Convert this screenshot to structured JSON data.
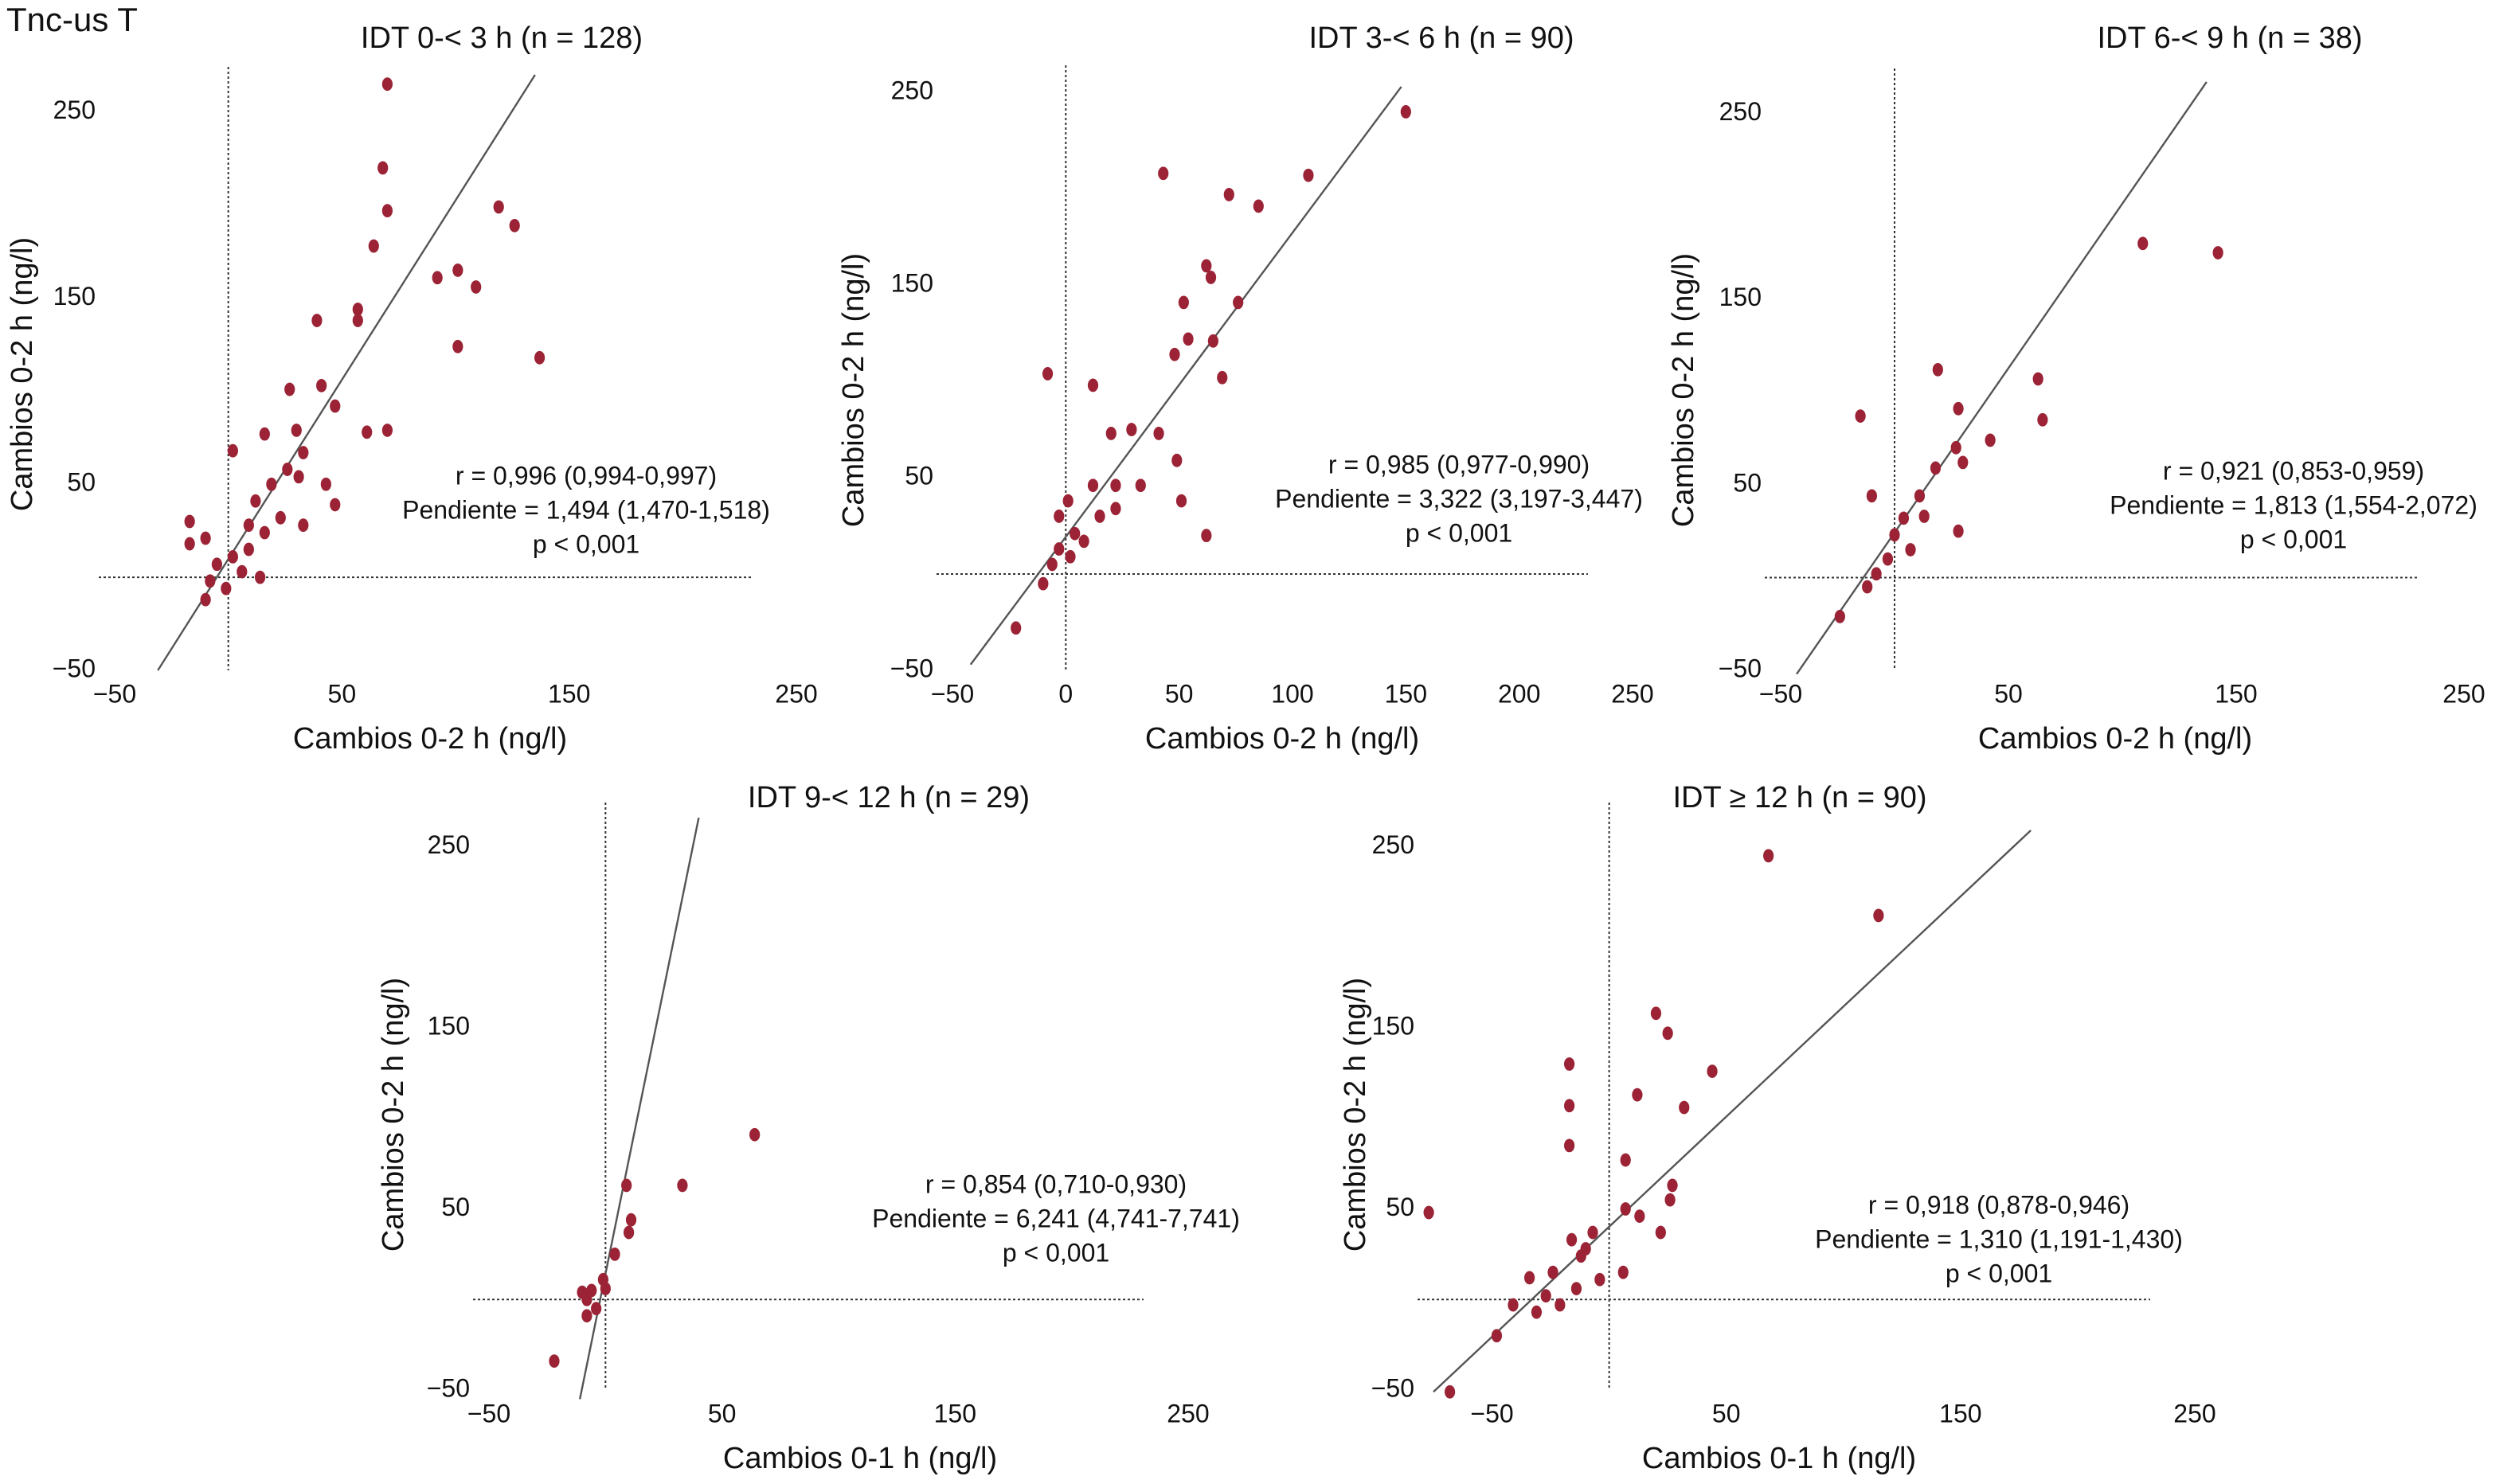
{
  "header": {
    "title": "Tnc-us T"
  },
  "chart_data": [
    {
      "type": "scatter",
      "title": "IDT 0-< 3 h (n = 128)",
      "x_label": "Cambios 0-2 h (ng/l)",
      "y_label": "Cambios 0-2 h (ng/l)",
      "annotation": [
        "r = 0,996 (0,994-0,997)",
        "Pendiente = 1,494 (1,470-1,518)",
        "p < 0,001"
      ],
      "xlim": [
        -50,
        250
      ],
      "ylim": [
        -50,
        270
      ],
      "xticks": [
        {
          "value": -50,
          "label": "−50"
        },
        50,
        150,
        250
      ],
      "yticks": [
        {
          "value": -50,
          "label": "−50"
        },
        50,
        150,
        250
      ],
      "fit_line": {
        "x": [
          -31,
          135
        ],
        "y": [
          -50,
          270
        ]
      },
      "series": [
        {
          "color": "#9b2335",
          "x": [
            70,
            68,
            70,
            119,
            126,
            137,
            92,
            101,
            109,
            101,
            64,
            57,
            57,
            39,
            70,
            61,
            47,
            41,
            27,
            16,
            2,
            -17,
            -10,
            -17,
            14,
            30,
            31,
            43,
            47,
            33,
            23,
            19,
            9,
            9,
            2,
            -5,
            -8,
            -10,
            -1,
            6,
            16,
            26,
            33,
            12
          ],
          "values": [
            265,
            220,
            197,
            199,
            189,
            118,
            161,
            165,
            156,
            124,
            178,
            144,
            138,
            138,
            79,
            78,
            92,
            103,
            101,
            77,
            68,
            30,
            21,
            18,
            0,
            79,
            54,
            50,
            39,
            28,
            32,
            50,
            28,
            15,
            11,
            7,
            -2,
            -12,
            -6,
            3,
            24,
            58,
            67,
            41
          ]
        }
      ]
    },
    {
      "type": "scatter",
      "title": "IDT 3-< 6 h (n = 90)",
      "x_label": "Cambios 0-2 h (ng/l)",
      "y_label": "Cambios 0-2 h (ng/l)",
      "annotation": [
        "r = 0,985 (0,977-0,990)",
        "Pendiente = 3,322 (3,197-3,447)",
        "p < 0,001"
      ],
      "xlim": [
        -50,
        250
      ],
      "ylim": [
        -50,
        260
      ],
      "xticks": [
        {
          "value": -50,
          "label": "−50"
        },
        0,
        50,
        100,
        150,
        200,
        250
      ],
      "yticks": [
        {
          "value": -50,
          "label": "−50"
        },
        50,
        150,
        250
      ],
      "fit_line": {
        "x": [
          -42,
          148
        ],
        "y": [
          -47,
          253
        ]
      },
      "series": [
        {
          "color": "#9b2335",
          "x": [
            150,
            43,
            107,
            72,
            85,
            62,
            64,
            52,
            76,
            65,
            48,
            54,
            69,
            -8,
            12,
            29,
            20,
            41,
            49,
            33,
            22,
            12,
            1,
            -3,
            51,
            62,
            15,
            4,
            -3,
            -6,
            -10,
            -22,
            2,
            8,
            22
          ],
          "values": [
            240,
            208,
            207,
            197,
            191,
            160,
            154,
            141,
            141,
            121,
            114,
            122,
            102,
            104,
            98,
            75,
            73,
            73,
            59,
            46,
            46,
            46,
            38,
            30,
            38,
            20,
            30,
            21,
            13,
            5,
            -5,
            -28,
            9,
            17,
            34
          ]
        }
      ]
    },
    {
      "type": "scatter",
      "title": "IDT 6-< 9 h (n = 38)",
      "x_label": "Cambios 0-2 h (ng/l)",
      "y_label": "Cambios 0-2 h (ng/l)",
      "annotation": [
        "r = 0,921 (0,853-0,959)",
        "Pendiente = 1,813 (1,554-2,072)",
        "p < 0,001"
      ],
      "xlim": [
        -50,
        250
      ],
      "ylim": [
        -50,
        270
      ],
      "xticks": [
        {
          "value": -50,
          "label": "−50"
        },
        50,
        150,
        250
      ],
      "yticks": [
        {
          "value": -50,
          "label": "−50"
        },
        50,
        150,
        250
      ],
      "fit_line": {
        "x": [
          -43,
          137
        ],
        "y": [
          -52,
          267
        ]
      },
      "series": [
        {
          "color": "#9b2335",
          "x": [
            109,
            142,
            -15,
            19,
            63,
            65,
            28,
            42,
            27,
            18,
            30,
            11,
            -10,
            4,
            0,
            13,
            28,
            -8,
            -3,
            -12,
            -24,
            7
          ],
          "values": [
            180,
            175,
            87,
            112,
            107,
            85,
            91,
            74,
            70,
            59,
            62,
            44,
            44,
            32,
            23,
            33,
            25,
            2,
            10,
            -5,
            -21,
            15
          ]
        }
      ]
    },
    {
      "type": "scatter",
      "title": "IDT 9-< 12 h (n = 29)",
      "x_label": "Cambios 0-1 h (ng/l)",
      "y_label": "Cambios 0-2 h (ng/l)",
      "annotation": [
        "r = 0,854 (0,710-0,930)",
        "Pendiente = 6,241 (4,741-7,741)",
        "p < 0,001"
      ],
      "xlim": [
        -50,
        250
      ],
      "ylim": [
        -50,
        270
      ],
      "xticks": [
        {
          "value": -50,
          "label": "−50"
        },
        50,
        150,
        250
      ],
      "yticks": [
        {
          "value": -50,
          "label": "−50"
        },
        50,
        150,
        250
      ],
      "fit_line": {
        "x": [
          -11,
          40
        ],
        "y": [
          -55,
          266
        ]
      },
      "series": [
        {
          "color": "#9b2335",
          "x": [
            64,
            33,
            9,
            11,
            10,
            4,
            -1,
            -6,
            -8,
            -8,
            -22,
            -4,
            -10,
            0
          ],
          "values": [
            91,
            63,
            63,
            44,
            37,
            25,
            11,
            5,
            0,
            -9,
            -34,
            -5,
            4,
            6
          ]
        }
      ]
    },
    {
      "type": "scatter",
      "title": "IDT ≥ 12 h (n = 90)",
      "x_label": "Cambios 0-1 h (ng/l)",
      "y_label": "Cambios 0-2 h (ng/l)",
      "annotation": [
        "r = 0,918 (0,878-0,946)",
        "Pendiente = 1,310 (1,191-1,430)",
        "p < 0,001"
      ],
      "xlim": [
        -75,
        250
      ],
      "ylim": [
        -50,
        270
      ],
      "xticks": [
        {
          "value": -50,
          "label": "−50"
        },
        50,
        150,
        250
      ],
      "yticks": [
        {
          "value": -50,
          "label": "−50"
        },
        50,
        150,
        250
      ],
      "fit_line": {
        "x": [
          -75,
          180
        ],
        "y": [
          -51,
          259
        ]
      },
      "series": [
        {
          "color": "#9b2335",
          "x": [
            68,
            115,
            -77,
            -17,
            -17,
            -17,
            12,
            20,
            25,
            44,
            32,
            7,
            27,
            26,
            22,
            7,
            13,
            -7,
            6,
            -12,
            -16,
            -24,
            -34,
            -27,
            -31,
            -21,
            -14,
            -4,
            -48,
            -68,
            -41,
            -10
          ],
          "values": [
            245,
            212,
            48,
            130,
            107,
            85,
            113,
            158,
            147,
            126,
            106,
            77,
            63,
            55,
            37,
            50,
            46,
            37,
            15,
            24,
            33,
            15,
            12,
            2,
            -7,
            -3,
            6,
            11,
            -20,
            -51,
            -3,
            28
          ]
        }
      ]
    }
  ]
}
